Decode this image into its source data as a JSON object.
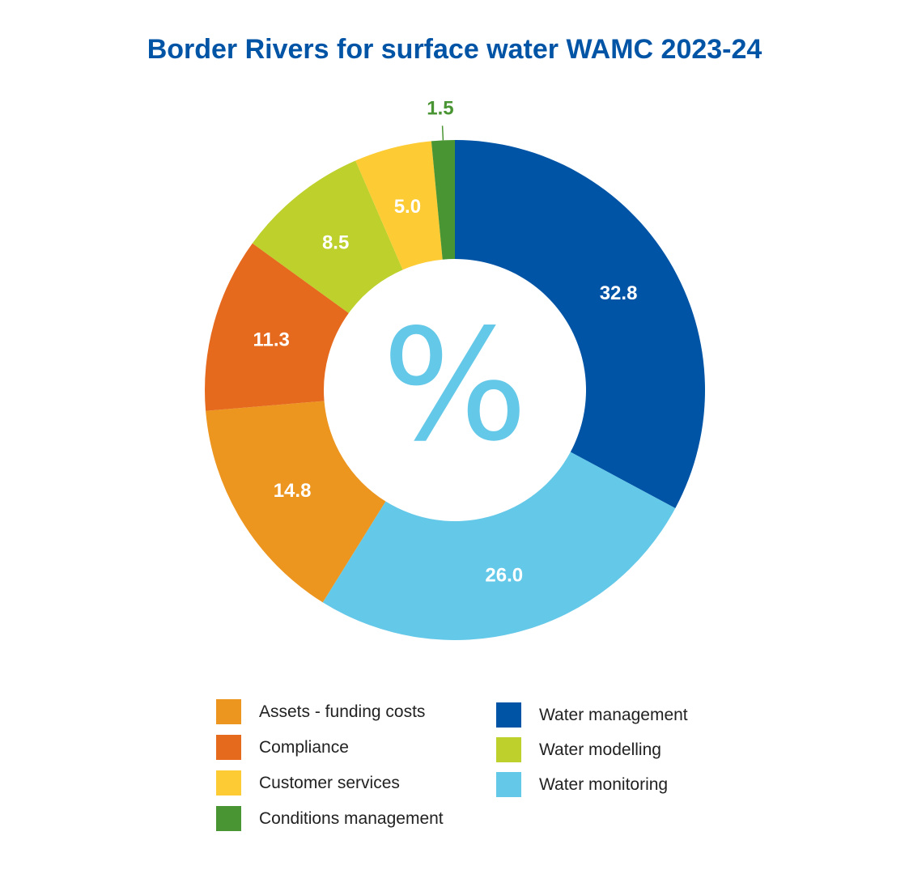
{
  "chart_data": {
    "type": "pie",
    "title": "Border Rivers for surface water WAMC 2023-24",
    "center_glyph": "%",
    "slices": [
      {
        "name": "Water management",
        "value": 32.8,
        "label": "32.8",
        "color": "#0054a6"
      },
      {
        "name": "Water monitoring",
        "value": 26.0,
        "label": "26.0",
        "color": "#64c8e8"
      },
      {
        "name": "Assets - funding costs",
        "value": 14.8,
        "label": "14.8",
        "color": "#ec951f"
      },
      {
        "name": "Compliance",
        "value": 11.3,
        "label": "11.3",
        "color": "#e66a1e"
      },
      {
        "name": "Water modelling",
        "value": 8.5,
        "label": "8.5",
        "color": "#bdd02b"
      },
      {
        "name": "Customer services",
        "value": 5.0,
        "label": "5.0",
        "color": "#fdcb33"
      },
      {
        "name": "Conditions management",
        "value": 1.5,
        "label": "1.5",
        "color": "#4a9533"
      }
    ],
    "legend": {
      "left": [
        "Assets - funding costs",
        "Compliance",
        "Customer services",
        "Conditions management"
      ],
      "right": [
        "Water management",
        "Water modelling",
        "Water monitoring"
      ]
    }
  }
}
